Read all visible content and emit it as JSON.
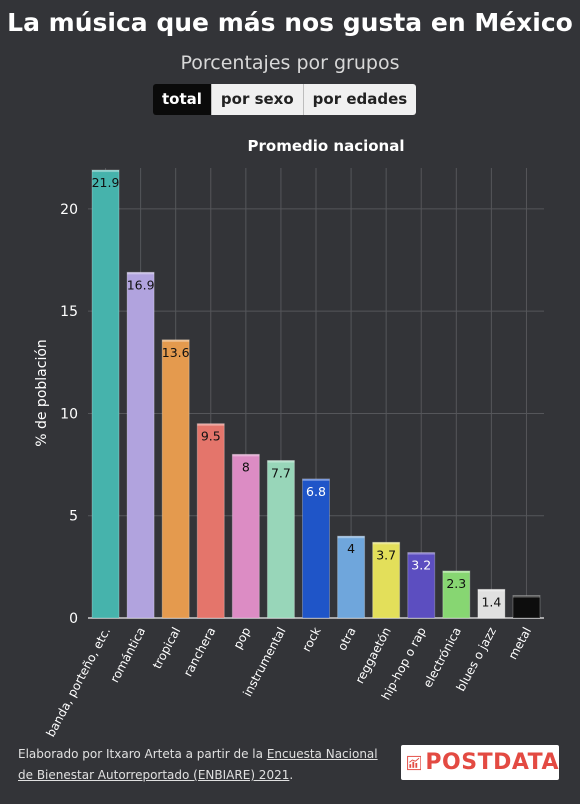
{
  "title": "La música que más nos gusta en México",
  "subtitle": "Porcentajes por grupos",
  "tabs": [
    {
      "label": "total",
      "active": true
    },
    {
      "label": "por sexo",
      "active": false
    },
    {
      "label": "por edades",
      "active": false
    }
  ],
  "footer": {
    "prefix": "Elaborado por Itxaro Arteta a partir de la ",
    "link": "Encuesta Nacional de Bienestar Autorreportado (ENBIARE) 2021",
    "suffix": "."
  },
  "logo": {
    "text": "POSTDATA",
    "color": "#e34a42"
  },
  "chart_data": {
    "type": "bar",
    "title": "Promedio nacional",
    "xlabel": "",
    "ylabel": "% de población",
    "ylim": [
      0,
      22
    ],
    "yticks": [
      0,
      5,
      10,
      15,
      20
    ],
    "grid": true,
    "categories": [
      "banda, porteño, etc.",
      "romántica",
      "tropical",
      "ranchera",
      "pop",
      "instrumental",
      "rock",
      "otra",
      "reggaetón",
      "hip-hop o rap",
      "electrónica",
      "blues o jazz",
      "metal"
    ],
    "values": [
      21.9,
      16.9,
      13.6,
      9.5,
      8,
      7.7,
      6.8,
      4,
      3.7,
      3.2,
      2.3,
      1.4,
      1.1
    ],
    "labels": [
      "21.9",
      "16.9",
      "13.6",
      "9.5",
      "8",
      "7.7",
      "6.8",
      "4",
      "3.7",
      "3.2",
      "2.3",
      "1.4",
      ""
    ],
    "colors": [
      "#46b3ac",
      "#b1a3de",
      "#e49a4e",
      "#e4756b",
      "#dc8cc4",
      "#98d6b9",
      "#1f55c8",
      "#6fa6dc",
      "#e3df5a",
      "#5c4ec0",
      "#87d672",
      "#e0e0e0",
      "#0d0d0d"
    ]
  }
}
